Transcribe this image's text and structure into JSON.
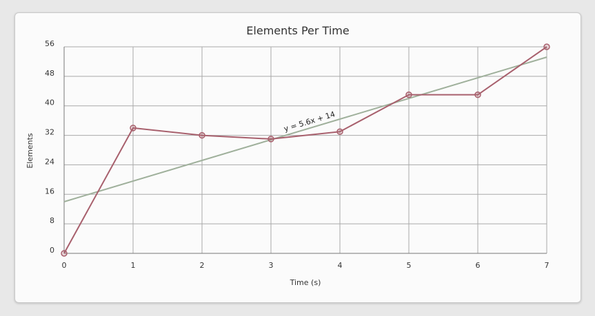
{
  "chart_data": {
    "type": "line",
    "title": "Elements Per Time",
    "xlabel": "Time (s)",
    "ylabel": "Elements",
    "x": [
      0,
      1,
      2,
      3,
      4,
      5,
      6,
      7
    ],
    "xticks": [
      "0",
      "1",
      "2",
      "3",
      "4",
      "5",
      "6",
      "7"
    ],
    "yticks": [
      "0",
      "8",
      "16",
      "24",
      "32",
      "40",
      "48",
      "56"
    ],
    "xlim": [
      0,
      7
    ],
    "ylim": [
      0,
      56
    ],
    "grid": true,
    "series": [
      {
        "values": [
          0,
          34,
          32,
          31,
          33,
          43,
          43,
          56
        ],
        "color": "#a8606d",
        "marker": "circle"
      }
    ],
    "trendline": {
      "label": "y = 5.6x + 14",
      "slope": 5.6,
      "intercept": 14,
      "color": "#9fb09b"
    },
    "colors": {
      "grid": "#a9a9a9",
      "axis": "#777777"
    }
  }
}
